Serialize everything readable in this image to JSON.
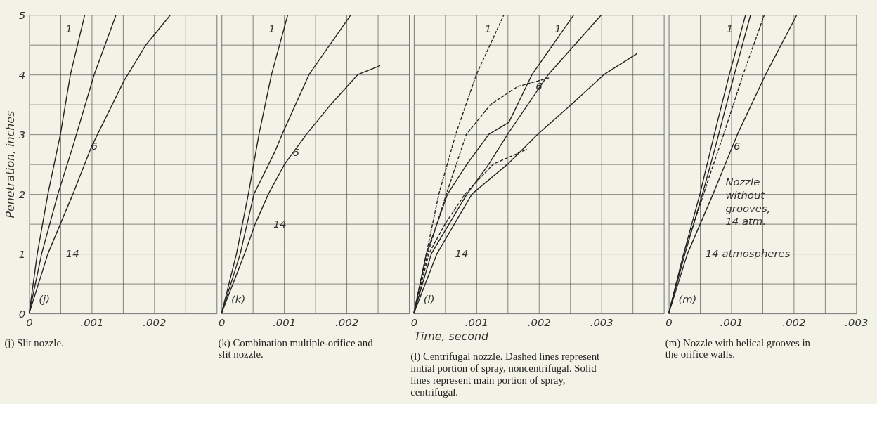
{
  "chart_data": [
    {
      "type": "line",
      "title": "(j) Slit nozzle.",
      "ylabel": "Penetration, inches",
      "xlim": [
        0,
        0.003
      ],
      "ylim": [
        0,
        5
      ],
      "xticks": [
        0,
        {
          "value": 0.0005,
          "label": null
        },
        {
          "value": 0.001,
          "label": ".001"
        },
        {
          "value": 0.0015,
          "label": null
        },
        {
          "value": 0.002,
          "label": ".002"
        },
        {
          "value": 0.0025,
          "label": null
        },
        {
          "value": 0.003,
          "label": null
        }
      ],
      "yticks": [
        0,
        {
          "value": 0.5,
          "label": null
        },
        1,
        {
          "value": 1.5,
          "label": null
        },
        2,
        {
          "value": 2.5,
          "label": null
        },
        3,
        {
          "value": 3.5,
          "label": null
        },
        4,
        {
          "value": 4.5,
          "label": null
        },
        5
      ],
      "grid": true,
      "line_style": "solid",
      "series": [
        {
          "color": "#222222",
          "x": [
            0,
            0.00013,
            0.0003,
            0.0005,
            0.00066,
            0.00089
          ],
          "values": [
            0,
            1,
            2,
            3,
            4,
            5
          ]
        },
        {
          "color": "#222222",
          "x": [
            0,
            0.0002,
            0.00046,
            0.0007,
            0.00104,
            0.00139
          ],
          "values": [
            0,
            1,
            2,
            2.8,
            4,
            5
          ]
        },
        {
          "color": "#222222",
          "x": [
            0,
            0.0003,
            0.0005,
            0.0007,
            0.001,
            0.00152,
            0.00187,
            0.00226
          ],
          "values": [
            0,
            1,
            1.5,
            2,
            2.8,
            3.9,
            4.5,
            5
          ]
        }
      ],
      "annotations": [
        {
          "text": "1",
          "x": 0.00089,
          "y": 5
        },
        {
          "text": "6",
          "x": 0.0007,
          "y": 2.8
        },
        {
          "text": "14",
          "x": 0.0003,
          "y": 1
        },
        "(j)"
      ]
    },
    {
      "type": "line",
      "title": "(k) Combination multiple-orifice and slit nozzle.",
      "tick_labels": "x",
      "xlim": [
        0,
        0.003
      ],
      "ylim": [
        0,
        5
      ],
      "xticks": [
        0,
        {
          "value": 0.0005,
          "label": null
        },
        {
          "value": 0.001,
          "label": ".001"
        },
        {
          "value": 0.0015,
          "label": null
        },
        {
          "value": 0.002,
          "label": ".002"
        },
        {
          "value": 0.0025,
          "label": null
        },
        {
          "value": 0.003,
          "label": null
        }
      ],
      "yticks": [
        0,
        {
          "value": 0.5,
          "label": null
        },
        1,
        {
          "value": 1.5,
          "label": null
        },
        2,
        {
          "value": 2.5,
          "label": null
        },
        3,
        {
          "value": 3.5,
          "label": null
        },
        4,
        {
          "value": 4.5,
          "label": null
        },
        5
      ],
      "grid": true,
      "line_style": "solid",
      "series": [
        {
          "color": "#222222",
          "x": [
            0,
            0.00024,
            0.00043,
            0.0006,
            0.0008,
            0.00106
          ],
          "values": [
            0,
            1,
            2,
            3,
            4,
            5
          ]
        },
        {
          "color": "#222222",
          "x": [
            0,
            0.0003,
            0.00052,
            0.00085,
            0.00097,
            0.0014,
            0.00207
          ],
          "values": [
            0,
            1,
            2,
            2.7,
            3,
            4,
            5
          ]
        },
        {
          "color": "#222222",
          "x": [
            0,
            0.00037,
            0.00054,
            0.00075,
            0.00101,
            0.00136,
            0.00175,
            0.00218,
            0.00254
          ],
          "values": [
            0,
            1,
            1.5,
            2,
            2.5,
            3,
            3.5,
            4,
            4.15
          ]
        }
      ],
      "annotations": [
        {
          "text": "1",
          "x": 0.00106,
          "y": 5
        },
        {
          "text": "6",
          "x": 0.00085,
          "y": 2.7
        },
        {
          "text": "14",
          "x": 0.00054,
          "y": 1.5
        },
        "(k)"
      ]
    },
    {
      "type": "line",
      "title": "(l) Centrifugal nozzle. Dashed lines represent initial portion of spray, noncentrifugal. Solid lines represent main portion of spray, centrifugal.",
      "xlabel": "Time, second",
      "tick_labels": "x",
      "xlim": [
        0,
        0.004
      ],
      "ylim": [
        0,
        5
      ],
      "xticks": [
        0,
        {
          "value": 0.0005,
          "label": null
        },
        {
          "value": 0.001,
          "label": ".001"
        },
        {
          "value": 0.0015,
          "label": null
        },
        {
          "value": 0.002,
          "label": ".002"
        },
        {
          "value": 0.0025,
          "label": null
        },
        {
          "value": 0.003,
          "label": ".003"
        },
        {
          "value": 0.0035,
          "label": null
        },
        {
          "value": 0.004,
          "label": null
        }
      ],
      "yticks": [
        0,
        {
          "value": 0.5,
          "label": null
        },
        1,
        {
          "value": 1.5,
          "label": null
        },
        2,
        {
          "value": 2.5,
          "label": null
        },
        3,
        {
          "value": 3.5,
          "label": null
        },
        4,
        {
          "value": 4.5,
          "label": null
        },
        5
      ],
      "grid": true,
      "series": [
        {
          "color": "#222222",
          "line_style": "dashed",
          "x": [
            0,
            0.0002,
            0.0004,
            0.00067,
            0.001,
            0.00144
          ],
          "values": [
            0,
            1,
            2,
            3,
            4,
            5
          ]
        },
        {
          "color": "#222222",
          "line_style": "dashed",
          "x": [
            0,
            0.00022,
            0.00052,
            0.00084,
            0.00123,
            0.00166,
            0.00218
          ],
          "values": [
            0,
            1,
            2,
            3,
            3.5,
            3.8,
            3.95
          ]
        },
        {
          "color": "#222222",
          "line_style": "dashed",
          "x": [
            0,
            0.00024,
            0.0005,
            0.00082,
            0.00127,
            0.00181
          ],
          "values": [
            0,
            1,
            1.5,
            2,
            2.5,
            2.75
          ]
        },
        {
          "color": "#222222",
          "line_style": "solid",
          "x": [
            0,
            0.0002,
            0.00054,
            0.00085,
            0.0012,
            0.00152,
            0.00189,
            0.00256
          ],
          "values": [
            0,
            1,
            2,
            2.5,
            3,
            3.2,
            4,
            5
          ]
        },
        {
          "color": "#222222",
          "line_style": "solid",
          "x": [
            0,
            0.00028,
            0.00085,
            0.0012,
            0.0015,
            0.00215,
            0.003
          ],
          "values": [
            0,
            1,
            2,
            2.5,
            3,
            4,
            5
          ]
        },
        {
          "color": "#222222",
          "line_style": "solid",
          "x": [
            0,
            0.00037,
            0.00093,
            0.0015,
            0.00198,
            0.00252,
            0.00304,
            0.00357
          ],
          "values": [
            0,
            1,
            2,
            2.5,
            3,
            3.5,
            4,
            4.35
          ]
        }
      ],
      "annotations": [
        {
          "text": "1",
          "x": 0.00144,
          "y": 5
        },
        {
          "text": "1",
          "x": 0.00256,
          "y": 5
        },
        {
          "text": "6",
          "x": 0.00166,
          "y": 3.8
        },
        {
          "text": "14",
          "x": 0.00037,
          "y": 1
        },
        "(l)"
      ]
    },
    {
      "type": "line",
      "title": "(m) Nozzle with helical grooves in the orifice walls.",
      "tick_labels": "x",
      "xlim": [
        0,
        0.003
      ],
      "ylim": [
        0,
        5
      ],
      "xticks": [
        0,
        {
          "value": 0.0005,
          "label": null
        },
        {
          "value": 0.001,
          "label": ".001"
        },
        {
          "value": 0.0015,
          "label": null
        },
        {
          "value": 0.002,
          "label": ".002"
        },
        {
          "value": 0.0025,
          "label": null
        },
        {
          "value": 0.003,
          "label": ".003"
        }
      ],
      "yticks": [
        0,
        {
          "value": 0.5,
          "label": null
        },
        1,
        {
          "value": 1.5,
          "label": null
        },
        2,
        {
          "value": 2.5,
          "label": null
        },
        3,
        {
          "value": 3.5,
          "label": null
        },
        4,
        {
          "value": 4.5,
          "label": null
        },
        5
      ],
      "grid": true,
      "series": [
        {
          "color": "#222222",
          "line_style": "solid",
          "x": [
            0,
            0.00024,
            0.0005,
            0.00073,
            0.00097,
            0.00123
          ],
          "values": [
            0,
            1,
            2,
            3,
            4,
            5
          ]
        },
        {
          "color": "#222222",
          "line_style": "solid",
          "x": [
            0,
            0.00026,
            0.00054,
            0.00075,
            0.0008,
            0.00105,
            0.00131
          ],
          "values": [
            0,
            1,
            2,
            2.8,
            3,
            4,
            5
          ]
        },
        {
          "color": "#222222",
          "line_style": "dashed",
          "x": [
            0,
            0.00024,
            0.00056,
            0.00062,
            0.00088,
            0.00119,
            0.00153
          ],
          "values": [
            0,
            1,
            2,
            2.2,
            3,
            4,
            5
          ]
        },
        {
          "color": "#222222",
          "line_style": "solid",
          "x": [
            0,
            0.0003,
            0.00071,
            0.0011,
            0.00155,
            0.00205
          ],
          "values": [
            0,
            1,
            2,
            3,
            4,
            5
          ]
        }
      ],
      "annotations": [
        {
          "text": "1",
          "x": 0.00123,
          "y": 5
        },
        {
          "text": "6",
          "x": 0.00075,
          "y": 2.8
        },
        {
          "text": "Nozzle without grooves, 14 atm.",
          "x": 0.00062,
          "y": 2.2
        },
        {
          "text": "14 atmospheres",
          "x": 0.0003,
          "y": 1
        },
        "(m)"
      ]
    }
  ]
}
